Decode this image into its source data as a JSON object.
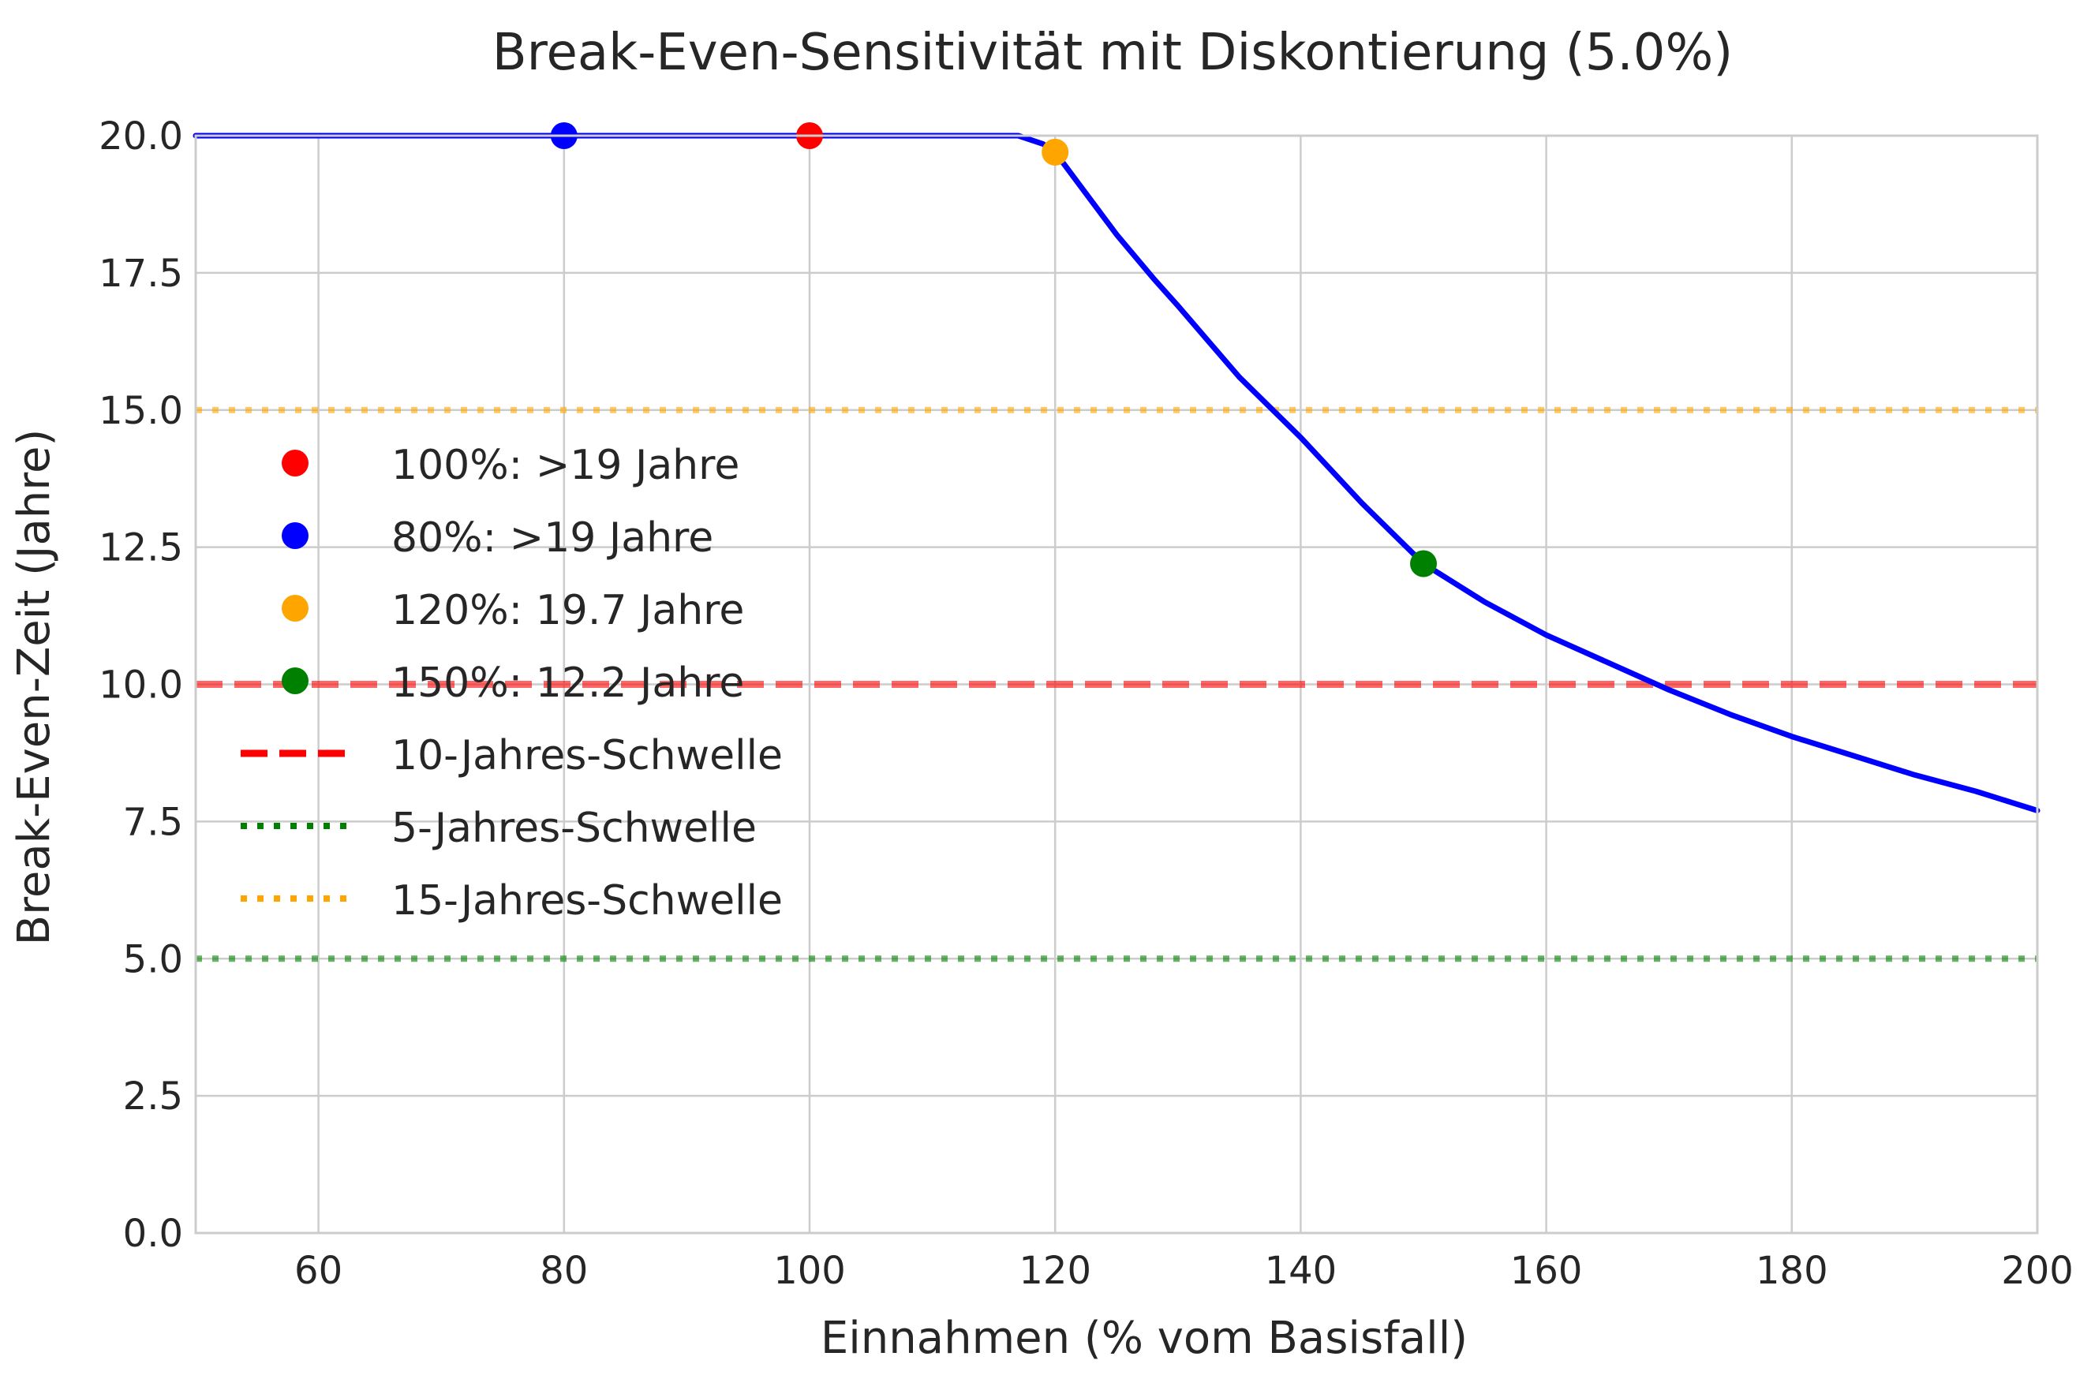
{
  "chart_data": {
    "type": "line",
    "title": "Break-Even-Sensitivität mit Diskontierung (5.0%)",
    "xlabel": "Einnahmen (% vom Basisfall)",
    "ylabel": "Break-Even-Zeit (Jahre)",
    "xlim": [
      50,
      200
    ],
    "ylim": [
      0,
      20
    ],
    "grid": true,
    "legend_position": "left",
    "xticks": [
      "60",
      "80",
      "100",
      "120",
      "140",
      "160",
      "180",
      "200"
    ],
    "yticks": [
      "0.0",
      "2.5",
      "5.0",
      "7.5",
      "10.0",
      "12.5",
      "15.0",
      "17.5",
      "20.0"
    ],
    "curve": {
      "color": "#0000ff",
      "x": [
        50,
        60,
        70,
        80,
        90,
        100,
        110,
        115,
        117,
        119,
        120,
        122,
        125,
        128,
        130,
        135,
        140,
        145,
        150,
        155,
        160,
        165,
        170,
        175,
        180,
        185,
        190,
        195,
        200
      ],
      "y": [
        20,
        20,
        20,
        20,
        20,
        20,
        20,
        20,
        20,
        19.85,
        19.7,
        19.1,
        18.2,
        17.4,
        16.9,
        15.6,
        14.5,
        13.3,
        12.2,
        11.5,
        10.9,
        10.4,
        9.9,
        9.45,
        9.05,
        8.7,
        8.35,
        8.05,
        7.7
      ]
    },
    "markers": [
      {
        "x": 100,
        "y": 20,
        "color": "#ff0000",
        "label": "100%: >19 Jahre"
      },
      {
        "x": 80,
        "y": 20,
        "color": "#0000ff",
        "label": "80%: >19 Jahre"
      },
      {
        "x": 120,
        "y": 19.7,
        "color": "#ffa500",
        "label": "120%: 19.7 Jahre"
      },
      {
        "x": 150,
        "y": 12.2,
        "color": "#008000",
        "label": "150%: 12.2 Jahre"
      }
    ],
    "thresholds": [
      {
        "y": 10,
        "color": "#ff0000",
        "style": "dashed",
        "label": "10-Jahres-Schwelle"
      },
      {
        "y": 5,
        "color": "#008000",
        "style": "dotted",
        "label": "5-Jahres-Schwelle"
      },
      {
        "y": 15,
        "color": "#ffa500",
        "style": "dotted",
        "label": "15-Jahres-Schwelle"
      }
    ]
  }
}
